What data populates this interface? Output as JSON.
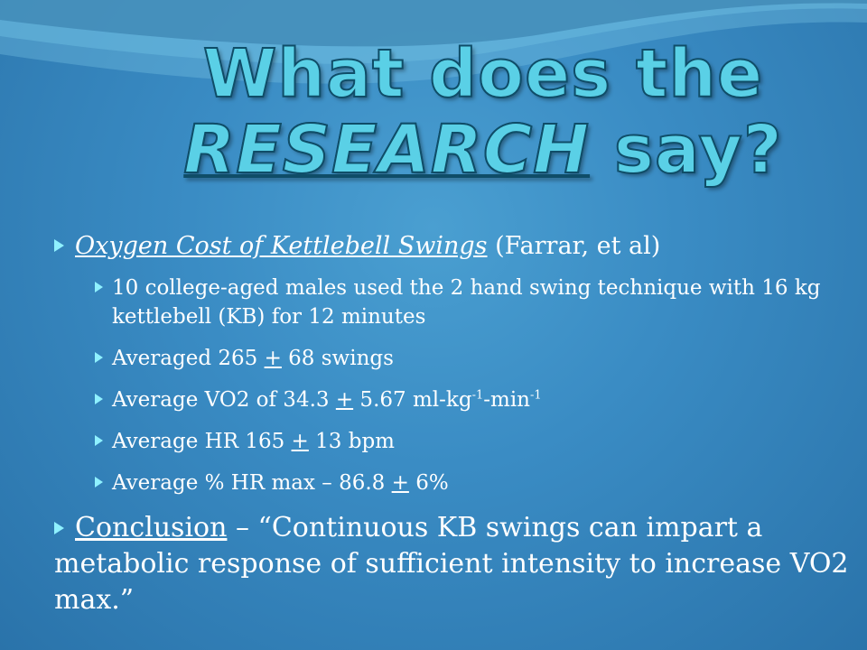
{
  "title": {
    "line1": "What does the",
    "emphasis": "RESEARCH",
    "end": " say?"
  },
  "study": {
    "name": "Oxygen Cost of Kettlebell Swings",
    "author": " (Farrar, et al)"
  },
  "findings": {
    "subjects": "10 college-aged males used the 2 hand swing technique with 16 kg kettlebell (KB) for 12 minutes",
    "swings_pre": "Averaged 265 ",
    "pm": "+",
    "swings_post": " 68 swings",
    "vo2_pre": "Average VO2 of 34.3 ",
    "vo2_mid": " 5.67 ml-kg",
    "vo2_exp": "-1",
    "vo2_mid2": "-min",
    "hr_pre": "Average HR 165 ",
    "hr_post": " 13 bpm",
    "hrmax_pre": "Average % HR max – 86.8 ",
    "hrmax_post": " 6%"
  },
  "conclusion": {
    "label": "Conclusion",
    "text": " – “Continuous KB swings can impart a metabolic response of sufficient intensity to increase VO2 max.”"
  },
  "colors": {
    "background": "#3a8cc4",
    "title_fill": "#5ad0e6",
    "title_stroke": "#0f4d68",
    "bullet": "#8ff1ff"
  },
  "icons": {
    "bullet": "triangle-bullet-icon"
  }
}
